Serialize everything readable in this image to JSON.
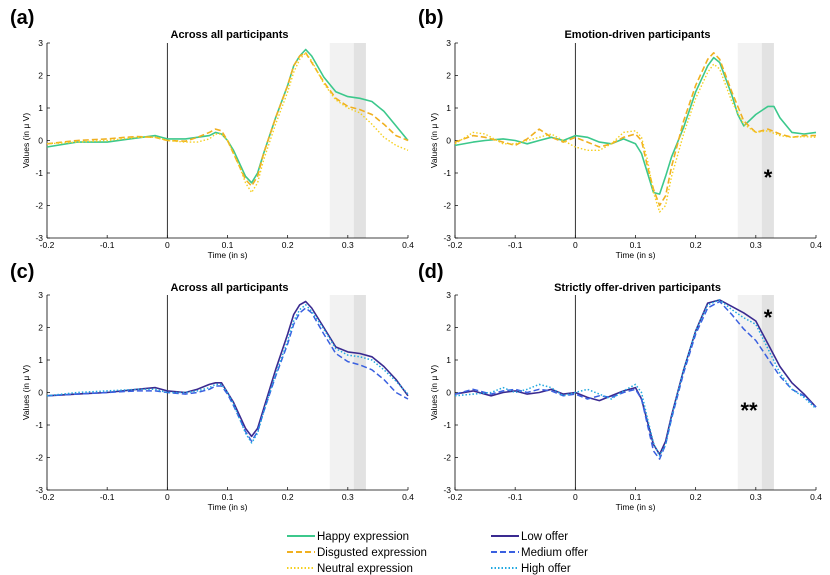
{
  "chart_data": [
    {
      "type": "line",
      "panel_label": "(a)",
      "title": "Across all participants",
      "xlabel": "Time (in s)",
      "ylabel": "Values (in μ V)",
      "xlim": [
        -0.2,
        0.4
      ],
      "ylim": [
        -3,
        3
      ],
      "xticks": [
        -0.2,
        -0.1,
        0,
        0.1,
        0.2,
        0.3,
        0.4
      ],
      "yticks": [
        -3,
        -2,
        -1,
        0,
        1,
        2,
        3
      ],
      "shaded_windows": [
        [
          0.27,
          0.33
        ],
        [
          0.31,
          0.33
        ]
      ],
      "annotation": "",
      "series": [
        {
          "style": "happy",
          "x": [
            -0.2,
            -0.15,
            -0.1,
            -0.05,
            -0.02,
            0,
            0.03,
            0.05,
            0.07,
            0.08,
            0.09,
            0.1,
            0.11,
            0.12,
            0.13,
            0.14,
            0.15,
            0.16,
            0.18,
            0.2,
            0.21,
            0.22,
            0.23,
            0.24,
            0.26,
            0.28,
            0.3,
            0.32,
            0.34,
            0.36,
            0.38,
            0.4
          ],
          "y": [
            -0.2,
            -0.05,
            -0.05,
            0.08,
            0.15,
            0.05,
            0.05,
            0.1,
            0.15,
            0.25,
            0.2,
            0.0,
            -0.3,
            -0.7,
            -1.1,
            -1.3,
            -1.0,
            -0.4,
            0.7,
            1.7,
            2.3,
            2.6,
            2.8,
            2.6,
            1.95,
            1.5,
            1.35,
            1.3,
            1.2,
            0.9,
            0.45,
            0.0
          ]
        },
        {
          "style": "disgusted",
          "x": [
            -0.2,
            -0.15,
            -0.1,
            -0.07,
            -0.05,
            -0.02,
            0,
            0.03,
            0.05,
            0.07,
            0.08,
            0.09,
            0.1,
            0.11,
            0.12,
            0.13,
            0.14,
            0.15,
            0.16,
            0.18,
            0.2,
            0.21,
            0.22,
            0.23,
            0.24,
            0.26,
            0.28,
            0.3,
            0.32,
            0.34,
            0.36,
            0.38,
            0.4
          ],
          "y": [
            -0.1,
            0.0,
            0.05,
            0.1,
            0.12,
            0.1,
            0.0,
            -0.02,
            0.1,
            0.25,
            0.35,
            0.3,
            0.0,
            -0.4,
            -0.8,
            -1.2,
            -1.4,
            -1.1,
            -0.4,
            0.7,
            1.7,
            2.3,
            2.6,
            2.7,
            2.4,
            1.8,
            1.3,
            1.05,
            0.95,
            0.8,
            0.5,
            0.15,
            0.0
          ]
        },
        {
          "style": "neutral",
          "x": [
            -0.2,
            -0.15,
            -0.1,
            -0.05,
            -0.02,
            0,
            0.03,
            0.05,
            0.07,
            0.08,
            0.09,
            0.1,
            0.11,
            0.12,
            0.13,
            0.14,
            0.15,
            0.16,
            0.18,
            0.2,
            0.21,
            0.22,
            0.23,
            0.24,
            0.26,
            0.28,
            0.3,
            0.32,
            0.34,
            0.36,
            0.38,
            0.4
          ],
          "y": [
            -0.1,
            -0.05,
            0.0,
            0.1,
            0.1,
            0.0,
            -0.05,
            -0.05,
            0.05,
            0.2,
            0.2,
            0.0,
            -0.4,
            -0.8,
            -1.3,
            -1.6,
            -1.3,
            -0.6,
            0.5,
            1.5,
            2.1,
            2.5,
            2.7,
            2.45,
            1.75,
            1.25,
            1.0,
            0.85,
            0.5,
            0.1,
            -0.15,
            -0.3
          ]
        }
      ]
    },
    {
      "type": "line",
      "panel_label": "(b)",
      "title": "Emotion-driven participants",
      "xlabel": "Time (in s)",
      "ylabel": "Values (in μ V)",
      "xlim": [
        -0.2,
        0.4
      ],
      "ylim": [
        -3,
        3
      ],
      "xticks": [
        -0.2,
        -0.1,
        0,
        0.1,
        0.2,
        0.3,
        0.4
      ],
      "yticks": [
        -3,
        -2,
        -1,
        0,
        1,
        2,
        3
      ],
      "shaded_windows": [
        [
          0.27,
          0.33
        ],
        [
          0.31,
          0.33
        ]
      ],
      "annotation": "*",
      "series": [
        {
          "style": "happy",
          "x": [
            -0.2,
            -0.17,
            -0.15,
            -0.12,
            -0.1,
            -0.08,
            -0.06,
            -0.04,
            -0.02,
            0,
            0.02,
            0.04,
            0.06,
            0.08,
            0.1,
            0.11,
            0.12,
            0.13,
            0.14,
            0.15,
            0.16,
            0.18,
            0.2,
            0.22,
            0.23,
            0.24,
            0.26,
            0.27,
            0.28,
            0.3,
            0.32,
            0.33,
            0.34,
            0.36,
            0.38,
            0.4
          ],
          "y": [
            -0.15,
            -0.05,
            0.0,
            0.05,
            0.0,
            -0.1,
            0.0,
            0.1,
            0.0,
            0.15,
            0.1,
            -0.05,
            -0.1,
            0.05,
            -0.1,
            -0.4,
            -1.0,
            -1.6,
            -1.65,
            -1.1,
            -0.5,
            0.4,
            1.5,
            2.3,
            2.55,
            2.4,
            1.4,
            0.8,
            0.45,
            0.8,
            1.05,
            1.05,
            0.7,
            0.25,
            0.2,
            0.25
          ]
        },
        {
          "style": "disgusted",
          "x": [
            -0.2,
            -0.17,
            -0.15,
            -0.12,
            -0.1,
            -0.08,
            -0.06,
            -0.04,
            -0.02,
            0,
            0.02,
            0.04,
            0.06,
            0.08,
            0.1,
            0.11,
            0.12,
            0.13,
            0.14,
            0.15,
            0.16,
            0.18,
            0.2,
            0.22,
            0.23,
            0.24,
            0.26,
            0.28,
            0.3,
            0.32,
            0.34,
            0.36,
            0.38,
            0.4
          ],
          "y": [
            -0.05,
            0.15,
            0.1,
            -0.05,
            -0.15,
            0.05,
            0.35,
            0.1,
            -0.05,
            0.1,
            -0.05,
            -0.2,
            -0.1,
            0.1,
            0.2,
            0.0,
            -0.8,
            -1.5,
            -2.0,
            -1.7,
            -0.8,
            0.6,
            1.7,
            2.5,
            2.7,
            2.5,
            1.5,
            0.6,
            0.25,
            0.35,
            0.2,
            0.1,
            0.15,
            0.15
          ]
        },
        {
          "style": "neutral",
          "x": [
            -0.2,
            -0.17,
            -0.15,
            -0.12,
            -0.1,
            -0.08,
            -0.06,
            -0.04,
            -0.02,
            0,
            0.02,
            0.04,
            0.06,
            0.08,
            0.1,
            0.11,
            0.12,
            0.13,
            0.14,
            0.15,
            0.16,
            0.18,
            0.2,
            0.22,
            0.23,
            0.24,
            0.26,
            0.28,
            0.3,
            0.32,
            0.34,
            0.36,
            0.38,
            0.4
          ],
          "y": [
            -0.1,
            0.25,
            0.2,
            -0.1,
            -0.1,
            0.0,
            0.1,
            0.2,
            0.0,
            -0.2,
            -0.3,
            -0.3,
            -0.1,
            0.25,
            0.3,
            0.1,
            -0.6,
            -1.6,
            -2.2,
            -2.0,
            -1.1,
            0.2,
            1.3,
            2.1,
            2.35,
            2.2,
            1.2,
            0.5,
            0.25,
            0.3,
            0.15,
            0.1,
            0.12,
            0.1
          ]
        }
      ]
    },
    {
      "type": "line",
      "panel_label": "(c)",
      "title": "Across all participants",
      "xlabel": "Time (in s)",
      "ylabel": "Values (in μ V)",
      "xlim": [
        -0.2,
        0.4
      ],
      "ylim": [
        -3,
        3
      ],
      "xticks": [
        -0.2,
        -0.1,
        0,
        0.1,
        0.2,
        0.3,
        0.4
      ],
      "yticks": [
        -3,
        -2,
        -1,
        0,
        1,
        2,
        3
      ],
      "shaded_windows": [
        [
          0.27,
          0.33
        ],
        [
          0.31,
          0.33
        ]
      ],
      "annotation": "",
      "series": [
        {
          "style": "low",
          "x": [
            -0.2,
            -0.15,
            -0.1,
            -0.05,
            -0.02,
            0,
            0.03,
            0.05,
            0.07,
            0.08,
            0.09,
            0.1,
            0.11,
            0.12,
            0.13,
            0.14,
            0.15,
            0.16,
            0.18,
            0.2,
            0.21,
            0.22,
            0.23,
            0.24,
            0.26,
            0.28,
            0.3,
            0.32,
            0.34,
            0.36,
            0.38,
            0.4
          ],
          "y": [
            -0.1,
            -0.05,
            0.0,
            0.1,
            0.15,
            0.05,
            0.0,
            0.1,
            0.25,
            0.3,
            0.3,
            0.0,
            -0.3,
            -0.7,
            -1.1,
            -1.35,
            -1.1,
            -0.5,
            0.7,
            1.8,
            2.4,
            2.7,
            2.8,
            2.6,
            2.0,
            1.4,
            1.25,
            1.2,
            1.1,
            0.8,
            0.4,
            -0.1
          ]
        },
        {
          "style": "medium",
          "x": [
            -0.2,
            -0.15,
            -0.1,
            -0.05,
            -0.02,
            0,
            0.03,
            0.05,
            0.07,
            0.08,
            0.09,
            0.1,
            0.11,
            0.12,
            0.13,
            0.14,
            0.15,
            0.16,
            0.18,
            0.2,
            0.21,
            0.22,
            0.23,
            0.24,
            0.26,
            0.28,
            0.3,
            0.32,
            0.34,
            0.36,
            0.38,
            0.4
          ],
          "y": [
            -0.1,
            -0.05,
            0.0,
            0.05,
            0.05,
            0.0,
            -0.05,
            0.0,
            0.1,
            0.2,
            0.2,
            -0.05,
            -0.4,
            -0.8,
            -1.2,
            -1.5,
            -1.2,
            -0.6,
            0.5,
            1.5,
            2.1,
            2.45,
            2.6,
            2.45,
            1.8,
            1.2,
            0.95,
            0.85,
            0.7,
            0.4,
            0.0,
            -0.2
          ]
        },
        {
          "style": "high",
          "x": [
            -0.2,
            -0.15,
            -0.1,
            -0.05,
            -0.02,
            0,
            0.03,
            0.05,
            0.07,
            0.08,
            0.09,
            0.1,
            0.11,
            0.12,
            0.13,
            0.14,
            0.15,
            0.16,
            0.18,
            0.2,
            0.21,
            0.22,
            0.23,
            0.24,
            0.26,
            0.28,
            0.3,
            0.32,
            0.34,
            0.36,
            0.38,
            0.4
          ],
          "y": [
            -0.1,
            0.0,
            0.05,
            0.1,
            0.1,
            0.0,
            0.0,
            0.05,
            0.15,
            0.25,
            0.25,
            0.0,
            -0.35,
            -0.8,
            -1.25,
            -1.55,
            -1.25,
            -0.6,
            0.55,
            1.6,
            2.2,
            2.55,
            2.7,
            2.5,
            1.95,
            1.35,
            1.15,
            1.1,
            1.0,
            0.7,
            0.35,
            -0.05
          ]
        }
      ]
    },
    {
      "type": "line",
      "panel_label": "(d)",
      "title": "Strictly offer-driven participants",
      "xlabel": "Time (in s)",
      "ylabel": "Values (in μ V)",
      "xlim": [
        -0.2,
        0.4
      ],
      "ylim": [
        -3,
        3
      ],
      "xticks": [
        -0.2,
        -0.1,
        0,
        0.1,
        0.2,
        0.3,
        0.4
      ],
      "yticks": [
        -3,
        -2,
        -1,
        0,
        1,
        2,
        3
      ],
      "shaded_windows": [
        [
          0.27,
          0.33
        ],
        [
          0.31,
          0.33
        ]
      ],
      "annotation": "*",
      "annotation2": "**",
      "series": [
        {
          "style": "low",
          "x": [
            -0.2,
            -0.17,
            -0.14,
            -0.12,
            -0.1,
            -0.08,
            -0.06,
            -0.04,
            -0.02,
            0,
            0.02,
            0.04,
            0.06,
            0.08,
            0.1,
            0.11,
            0.12,
            0.13,
            0.14,
            0.15,
            0.16,
            0.18,
            0.2,
            0.22,
            0.24,
            0.26,
            0.28,
            0.3,
            0.32,
            0.34,
            0.36,
            0.38,
            0.4
          ],
          "y": [
            -0.05,
            0.05,
            -0.1,
            0.0,
            0.05,
            -0.05,
            0.0,
            0.1,
            -0.05,
            0.0,
            -0.15,
            -0.25,
            -0.1,
            0.05,
            0.15,
            -0.2,
            -0.9,
            -1.6,
            -1.9,
            -1.5,
            -0.7,
            0.7,
            1.9,
            2.75,
            2.85,
            2.65,
            2.45,
            2.2,
            1.5,
            0.8,
            0.3,
            -0.05,
            -0.45
          ]
        },
        {
          "style": "medium",
          "x": [
            -0.2,
            -0.17,
            -0.14,
            -0.12,
            -0.1,
            -0.08,
            -0.06,
            -0.04,
            -0.02,
            0,
            0.02,
            0.04,
            0.06,
            0.08,
            0.1,
            0.11,
            0.12,
            0.13,
            0.14,
            0.15,
            0.16,
            0.18,
            0.2,
            0.22,
            0.24,
            0.26,
            0.28,
            0.3,
            0.32,
            0.34,
            0.36,
            0.38,
            0.4
          ],
          "y": [
            -0.05,
            0.1,
            -0.05,
            0.05,
            0.1,
            0.0,
            0.1,
            0.05,
            -0.1,
            -0.05,
            -0.2,
            -0.1,
            -0.15,
            0.0,
            0.1,
            -0.2,
            -1.0,
            -1.8,
            -2.05,
            -1.6,
            -0.8,
            0.6,
            1.8,
            2.6,
            2.8,
            2.4,
            1.95,
            1.6,
            1.05,
            0.5,
            0.1,
            -0.1,
            -0.45
          ]
        },
        {
          "style": "high",
          "x": [
            -0.2,
            -0.17,
            -0.14,
            -0.12,
            -0.1,
            -0.08,
            -0.06,
            -0.04,
            -0.02,
            0,
            0.02,
            0.04,
            0.06,
            0.08,
            0.1,
            0.11,
            0.12,
            0.13,
            0.14,
            0.15,
            0.16,
            0.18,
            0.2,
            0.22,
            0.24,
            0.26,
            0.28,
            0.3,
            0.32,
            0.34,
            0.36,
            0.38,
            0.4
          ],
          "y": [
            -0.1,
            -0.05,
            0.0,
            0.15,
            0.0,
            0.1,
            0.25,
            0.15,
            -0.1,
            0.0,
            0.1,
            -0.05,
            -0.2,
            0.05,
            0.25,
            0.0,
            -0.8,
            -1.55,
            -1.95,
            -1.6,
            -0.75,
            0.7,
            1.9,
            2.7,
            2.85,
            2.55,
            2.3,
            2.1,
            1.35,
            0.6,
            0.1,
            -0.15,
            -0.5
          ]
        }
      ]
    }
  ],
  "styles": {
    "happy": {
      "color": "#3cc88c",
      "dash": "",
      "width": 1.6
    },
    "disgusted": {
      "color": "#f0b020",
      "dash": "6,3",
      "width": 1.6
    },
    "neutral": {
      "color": "#f5d020",
      "dash": "1.5,2",
      "width": 1.4
    },
    "low": {
      "color": "#3a2a90",
      "dash": "",
      "width": 1.6
    },
    "medium": {
      "color": "#3a60e0",
      "dash": "6,3",
      "width": 1.5
    },
    "high": {
      "color": "#20a8e0",
      "dash": "1.5,2",
      "width": 1.5
    }
  },
  "legend_left": [
    {
      "style": "happy",
      "label": "Happy expression"
    },
    {
      "style": "disgusted",
      "label": "Disgusted expression"
    },
    {
      "style": "neutral",
      "label": "Neutral expression"
    }
  ],
  "legend_right": [
    {
      "style": "low",
      "label": "Low offer"
    },
    {
      "style": "medium",
      "label": "Medium offer"
    },
    {
      "style": "high",
      "label": "High offer"
    }
  ]
}
